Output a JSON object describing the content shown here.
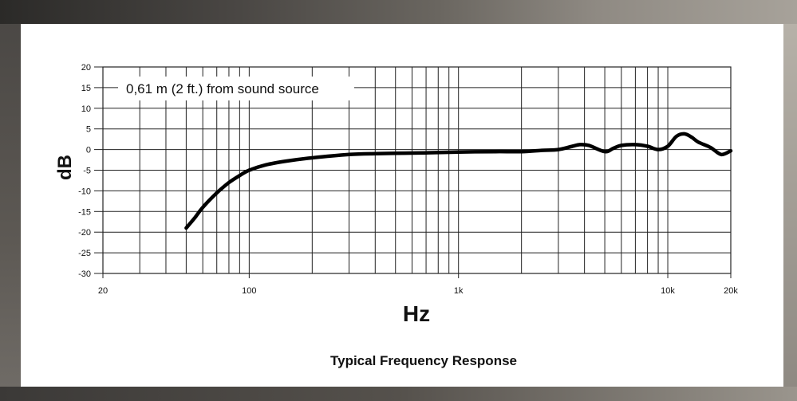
{
  "chart_data": {
    "type": "line",
    "title": "Typical Frequency Response",
    "annotation": "0,61 m (2 ft.) from sound source",
    "xlabel": "Hz",
    "ylabel": "dB",
    "x_scale": "log",
    "xlim": [
      20,
      20000
    ],
    "ylim": [
      -30,
      20
    ],
    "grid": true,
    "x_ticks": [
      {
        "value": 20,
        "label": "20"
      },
      {
        "value": 100,
        "label": "100"
      },
      {
        "value": 1000,
        "label": "1k"
      },
      {
        "value": 10000,
        "label": "10k"
      },
      {
        "value": 20000,
        "label": "20k"
      }
    ],
    "y_ticks": [
      20,
      15,
      10,
      5,
      0,
      -5,
      -10,
      -15,
      -20,
      -25,
      -30
    ],
    "series": [
      {
        "color": "#000000",
        "x": [
          50,
          55,
          60,
          70,
          80,
          90,
          100,
          120,
          150,
          200,
          300,
          400,
          500,
          700,
          1000,
          1500,
          2000,
          2500,
          3000,
          3500,
          3800,
          4200,
          5000,
          5500,
          6000,
          7000,
          8000,
          9000,
          10000,
          11000,
          12000,
          13000,
          14000,
          16000,
          18000,
          20000
        ],
        "y": [
          -19,
          -16.5,
          -14,
          -10.5,
          -8,
          -6.3,
          -5,
          -3.7,
          -2.8,
          -2,
          -1.2,
          -1,
          -0.9,
          -0.8,
          -0.6,
          -0.5,
          -0.5,
          -0.2,
          0,
          0.8,
          1.2,
          1.0,
          -0.5,
          0.3,
          1.0,
          1.2,
          0.8,
          0,
          0.8,
          3.2,
          3.8,
          3.0,
          1.8,
          0.5,
          -1.2,
          -0.3
        ]
      }
    ]
  }
}
